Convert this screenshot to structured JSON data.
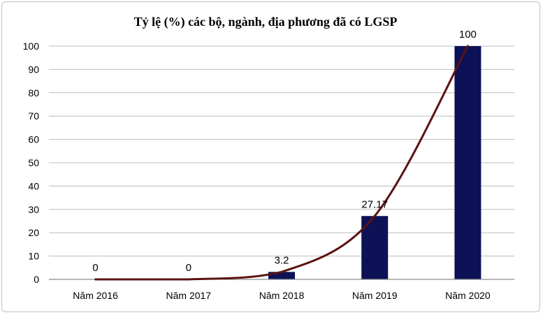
{
  "chart_data": {
    "type": "bar",
    "title": "Tỷ lệ (%) các bộ, ngành, địa phương đã có LGSP",
    "categories": [
      "Năm 2016",
      "Năm 2017",
      "Năm 2018",
      "Năm 2019",
      "Năm 2020"
    ],
    "values": [
      0,
      0,
      3.2,
      27.17,
      100
    ],
    "data_labels": [
      "0",
      "0",
      "3.2",
      "27.17",
      "100"
    ],
    "line_overlay": {
      "values": [
        0,
        0,
        3.2,
        27.17,
        100
      ],
      "color": "#5a1212",
      "smooth": true
    },
    "y_ticks": [
      "0",
      "10",
      "20",
      "30",
      "40",
      "50",
      "60",
      "70",
      "80",
      "90",
      "100"
    ],
    "ylim": [
      0,
      100
    ],
    "grid": true,
    "legend": "none",
    "colors": {
      "bar": "#0d1257",
      "line": "#5a1212",
      "grid": "#bcbcbc",
      "axis": "#8c8c8c"
    }
  }
}
